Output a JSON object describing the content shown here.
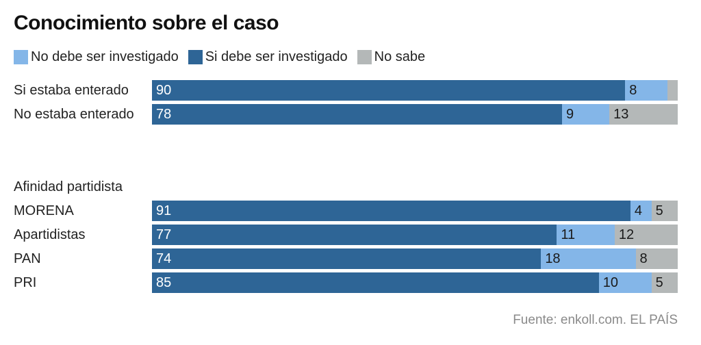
{
  "title": "Conocimiento sobre el caso",
  "legend": [
    {
      "label": "No debe ser investigado",
      "color": "#84b6e8"
    },
    {
      "label": "Si debe ser investigado",
      "color": "#2e6596"
    },
    {
      "label": "No sabe",
      "color": "#b4b8b8"
    }
  ],
  "section_label": "Afinidad partidista",
  "source": "Fuente: enkoll.com. EL PAÍS",
  "chart_data": {
    "type": "bar",
    "orientation": "horizontal",
    "stacked": true,
    "title": "Conocimiento sobre el caso",
    "xlim": [
      0,
      100
    ],
    "categories": [
      "Si estaba enterado",
      "No estaba enterado",
      "MORENA",
      "Apartidistas",
      "PAN",
      "PRI"
    ],
    "groups": [
      {
        "label": "",
        "categories": [
          "Si estaba enterado",
          "No estaba enterado"
        ]
      },
      {
        "label": "Afinidad partidista",
        "categories": [
          "MORENA",
          "Apartidistas",
          "PAN",
          "PRI"
        ]
      }
    ],
    "series": [
      {
        "name": "Si debe ser investigado",
        "color": "#2e6596",
        "values": [
          90,
          78,
          91,
          77,
          74,
          85
        ],
        "labels": [
          "90",
          "78",
          "91",
          "77",
          "74",
          "85"
        ]
      },
      {
        "name": "No debe ser investigado",
        "color": "#84b6e8",
        "values": [
          8,
          9,
          4,
          11,
          18,
          10
        ],
        "labels": [
          "8",
          "9",
          "4",
          "11",
          "18",
          "10"
        ]
      },
      {
        "name": "No sabe",
        "color": "#b4b8b8",
        "values": [
          2,
          13,
          5,
          12,
          8,
          5
        ],
        "labels": [
          "",
          "13",
          "5",
          "12",
          "8",
          "5"
        ]
      }
    ],
    "legend_position": "top-left",
    "grid": false
  }
}
